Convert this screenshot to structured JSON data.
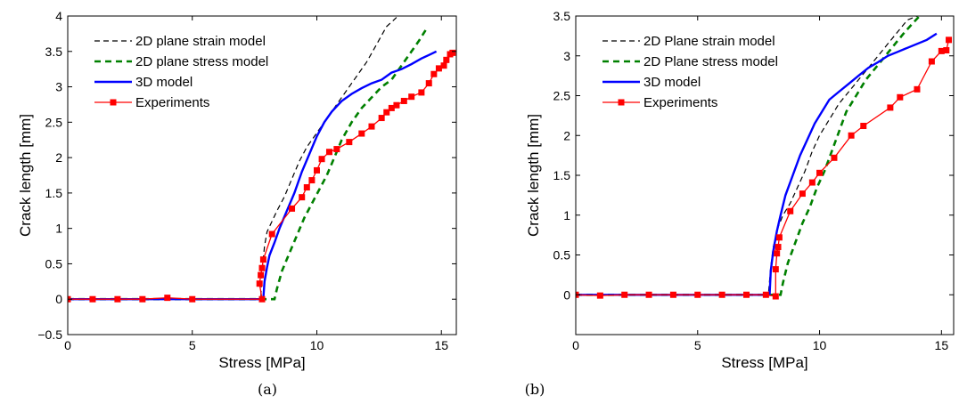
{
  "chart_data": [
    {
      "type": "line",
      "caption": "(a)",
      "xlabel": "Stress [MPa]",
      "ylabel": "Crack length [mm]",
      "xlim": [
        0,
        15.6
      ],
      "ylim": [
        -0.5,
        4
      ],
      "xticks": [
        0,
        5,
        10,
        15
      ],
      "yticks": [
        -0.5,
        0,
        0.5,
        1,
        1.5,
        2,
        2.5,
        3,
        3.5,
        4
      ],
      "ytick_labels": [
        "−0.5",
        "0",
        "0.5",
        "1",
        "1.5",
        "2",
        "2.5",
        "3",
        "3.5",
        "4"
      ],
      "grid": false,
      "legend_position": "top-left",
      "series": [
        {
          "name": "2D plane strain model",
          "color": "#000000",
          "style": "dashed",
          "marker": "none",
          "x": [
            0,
            7.75,
            7.8,
            7.9,
            8.0,
            8.2,
            8.4,
            8.7,
            9.0,
            9.3,
            9.6,
            10.0,
            10.4,
            10.8,
            11.2,
            11.6,
            12.0,
            12.4,
            12.8,
            13.2
          ],
          "y": [
            0,
            0,
            0.4,
            0.75,
            0.95,
            1.1,
            1.25,
            1.45,
            1.7,
            1.95,
            2.15,
            2.35,
            2.55,
            2.75,
            2.95,
            3.15,
            3.35,
            3.6,
            3.85,
            3.98
          ]
        },
        {
          "name": "2D plane stress model",
          "color": "#008000",
          "style": "dashed",
          "marker": "none",
          "x": [
            0,
            8.3,
            8.4,
            8.6,
            8.9,
            9.2,
            9.5,
            9.8,
            10.1,
            10.4,
            10.7,
            11.0,
            11.4,
            11.8,
            12.2,
            12.6,
            13.0,
            13.4,
            13.8,
            14.1,
            14.4
          ],
          "y": [
            0,
            0,
            0.15,
            0.4,
            0.65,
            0.9,
            1.15,
            1.35,
            1.55,
            1.75,
            2.0,
            2.25,
            2.5,
            2.7,
            2.85,
            3.0,
            3.1,
            3.3,
            3.5,
            3.65,
            3.82
          ]
        },
        {
          "name": "3D model",
          "color": "#0000ff",
          "style": "solid",
          "marker": "none",
          "x": [
            0,
            7.85,
            7.9,
            8.0,
            8.1,
            8.3,
            8.5,
            8.8,
            9.1,
            9.4,
            9.7,
            10.0,
            10.3,
            10.6,
            11.0,
            11.4,
            11.8,
            12.2,
            12.6,
            13.0,
            13.4,
            13.8,
            14.2,
            14.5,
            14.8
          ],
          "y": [
            0,
            0,
            0.25,
            0.45,
            0.62,
            0.8,
            1.0,
            1.25,
            1.5,
            1.8,
            2.05,
            2.3,
            2.5,
            2.65,
            2.8,
            2.9,
            2.98,
            3.05,
            3.1,
            3.2,
            3.25,
            3.32,
            3.4,
            3.45,
            3.5
          ]
        },
        {
          "name": "Experiments",
          "color": "#ff0000",
          "style": "solid",
          "marker": "square",
          "x": [
            0,
            1,
            2,
            3,
            4,
            5,
            7.8,
            7.7,
            7.75,
            7.8,
            7.85,
            8.2,
            9.0,
            9.4,
            9.6,
            9.8,
            10.0,
            10.2,
            10.5,
            10.8,
            11.3,
            11.8,
            12.2,
            12.6,
            12.8,
            13.0,
            13.2,
            13.5,
            13.8,
            14.2,
            14.5,
            14.7,
            14.9,
            15.1,
            15.2,
            15.35,
            15.45
          ],
          "y": [
            0,
            0,
            0,
            0,
            0.02,
            0,
            0,
            0.22,
            0.34,
            0.44,
            0.56,
            0.92,
            1.28,
            1.44,
            1.58,
            1.68,
            1.82,
            1.98,
            2.08,
            2.12,
            2.22,
            2.34,
            2.44,
            2.56,
            2.64,
            2.7,
            2.74,
            2.8,
            2.86,
            2.92,
            3.05,
            3.18,
            3.26,
            3.3,
            3.38,
            3.46,
            3.48
          ]
        }
      ]
    },
    {
      "type": "line",
      "caption": "(b)",
      "xlabel": "Stress [MPa]",
      "ylabel": "Crack length [mm]",
      "xlim": [
        0,
        15.5
      ],
      "ylim": [
        -0.5,
        3.5
      ],
      "xticks": [
        0,
        5,
        10,
        15
      ],
      "yticks": [
        0,
        0.5,
        1,
        1.5,
        2,
        2.5,
        3,
        3.5
      ],
      "ytick_labels": [
        "0",
        "0.5",
        "1",
        "1.5",
        "2",
        "2.5",
        "3",
        "3.5"
      ],
      "grid": false,
      "legend_position": "top-left",
      "series": [
        {
          "name": "2D Plane strain model",
          "color": "#000000",
          "style": "dashed",
          "marker": "none",
          "x": [
            0,
            7.9,
            8.0,
            8.1,
            8.3,
            8.5,
            8.8,
            9.1,
            9.4,
            9.7,
            10.0,
            10.4,
            10.8,
            11.2,
            11.6,
            12.0,
            12.4,
            12.8,
            13.2,
            13.6,
            14.0
          ],
          "y": [
            0,
            0,
            0.35,
            0.6,
            0.85,
            1.0,
            1.15,
            1.35,
            1.55,
            1.8,
            2.0,
            2.2,
            2.4,
            2.55,
            2.7,
            2.85,
            3.0,
            3.15,
            3.3,
            3.45,
            3.5
          ]
        },
        {
          "name": "2D Plane stress model",
          "color": "#008000",
          "style": "dashed",
          "marker": "none",
          "x": [
            0,
            8.4,
            8.5,
            8.7,
            9.0,
            9.3,
            9.6,
            9.9,
            10.2,
            10.5,
            10.8,
            11.1,
            11.5,
            11.9,
            12.3,
            12.7,
            13.1,
            13.5,
            13.8,
            14.1
          ],
          "y": [
            0,
            0,
            0.15,
            0.4,
            0.65,
            0.9,
            1.1,
            1.35,
            1.55,
            1.8,
            2.05,
            2.3,
            2.5,
            2.7,
            2.85,
            3.0,
            3.15,
            3.3,
            3.4,
            3.5
          ]
        },
        {
          "name": "3D model",
          "color": "#0000ff",
          "style": "solid",
          "marker": "none",
          "x": [
            0,
            7.95,
            8.0,
            8.1,
            8.25,
            8.4,
            8.6,
            8.9,
            9.2,
            9.5,
            9.8,
            10.1,
            10.4,
            10.8,
            11.2,
            11.6,
            12.0,
            12.4,
            12.8,
            13.2,
            13.6,
            14.0,
            14.4,
            14.8
          ],
          "y": [
            0,
            0,
            0.3,
            0.55,
            0.8,
            1.0,
            1.25,
            1.5,
            1.75,
            1.95,
            2.15,
            2.3,
            2.45,
            2.55,
            2.65,
            2.75,
            2.85,
            2.92,
            3.0,
            3.05,
            3.1,
            3.15,
            3.2,
            3.28
          ]
        },
        {
          "name": "Experiments",
          "color": "#ff0000",
          "style": "solid",
          "marker": "square",
          "x": [
            0,
            1,
            2,
            3,
            4,
            5,
            6,
            7,
            7.8,
            8.2,
            8.2,
            8.25,
            8.3,
            8.35,
            8.8,
            9.3,
            9.7,
            10.0,
            10.6,
            11.3,
            11.8,
            12.9,
            13.3,
            14.0,
            14.6,
            15.0,
            15.2,
            15.3
          ],
          "y": [
            0,
            -0.01,
            0,
            0,
            0,
            0,
            0,
            0,
            0,
            -0.02,
            0.32,
            0.52,
            0.6,
            0.72,
            1.05,
            1.27,
            1.41,
            1.53,
            1.72,
            2.0,
            2.12,
            2.35,
            2.48,
            2.58,
            2.93,
            3.06,
            3.07,
            3.2
          ]
        }
      ]
    }
  ]
}
